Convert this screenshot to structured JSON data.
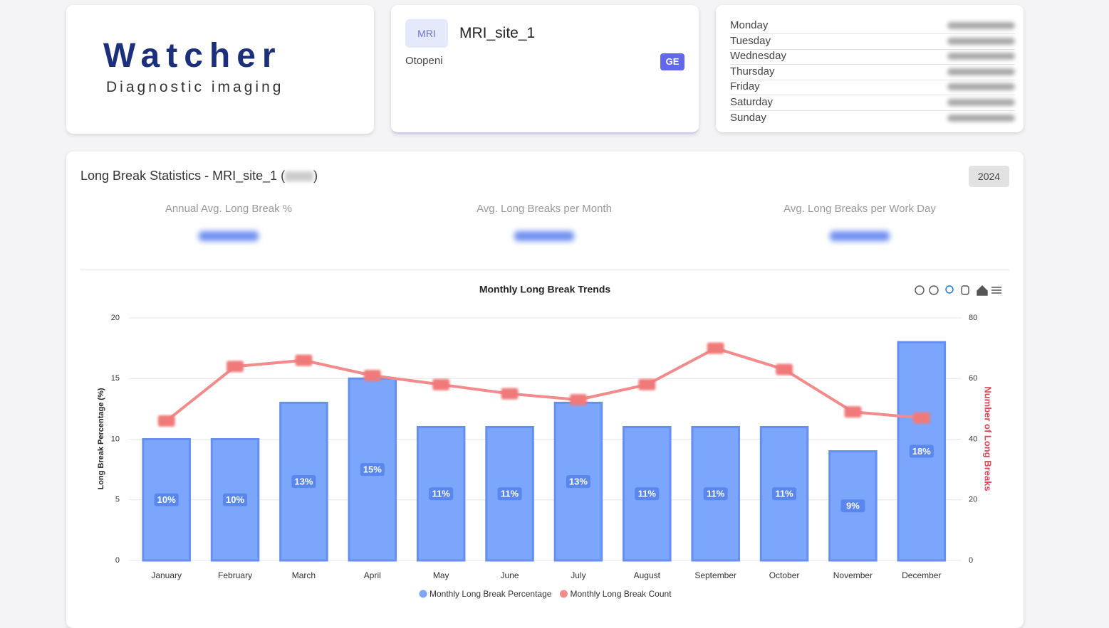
{
  "logo": {
    "name": "Watcher",
    "tagline": "Diagnostic imaging"
  },
  "site": {
    "modality": "MRI",
    "name": "MRI_site_1",
    "location": "Otopeni",
    "vendor": "GE"
  },
  "schedule": {
    "days": [
      "Monday",
      "Tuesday",
      "Wednesday",
      "Thursday",
      "Friday",
      "Saturday",
      "Sunday"
    ]
  },
  "stats": {
    "title_prefix": "Long Break Statistics - MRI_site_1 (",
    "title_suffix": ")",
    "year": "2024",
    "kpis": [
      "Annual Avg. Long Break %",
      "Avg. Long Breaks per Month",
      "Avg. Long Breaks per Work Day"
    ]
  },
  "chart_data": {
    "type": "bar",
    "title": "Monthly Long Break Trends",
    "categories": [
      "January",
      "February",
      "March",
      "April",
      "May",
      "June",
      "July",
      "August",
      "September",
      "October",
      "November",
      "December"
    ],
    "series": [
      {
        "name": "Monthly Long Break Percentage",
        "type": "bar",
        "color": "#7ba6fb",
        "values": [
          10,
          10,
          13,
          15,
          11,
          11,
          13,
          11,
          11,
          11,
          9,
          18
        ],
        "value_labels": [
          "10%",
          "10%",
          "13%",
          "15%",
          "11%",
          "11%",
          "13%",
          "11%",
          "11%",
          "11%",
          "9%",
          "18%"
        ]
      },
      {
        "name": "Monthly Long Break Count",
        "type": "line",
        "axis": "y2",
        "color": "#f28b8b",
        "values": [
          46,
          64,
          66,
          61,
          58,
          55,
          53,
          58,
          70,
          63,
          49,
          47
        ]
      }
    ],
    "ylabel": "Long Break Percentage (%)",
    "y2label": "Number of Long Breaks",
    "ylim": [
      0,
      20
    ],
    "yticks": [
      0,
      5,
      10,
      15,
      20
    ],
    "y2lim": [
      0,
      80
    ],
    "y2ticks": [
      0,
      20,
      40,
      60,
      80
    ],
    "grid": true,
    "legend": "bottom"
  }
}
